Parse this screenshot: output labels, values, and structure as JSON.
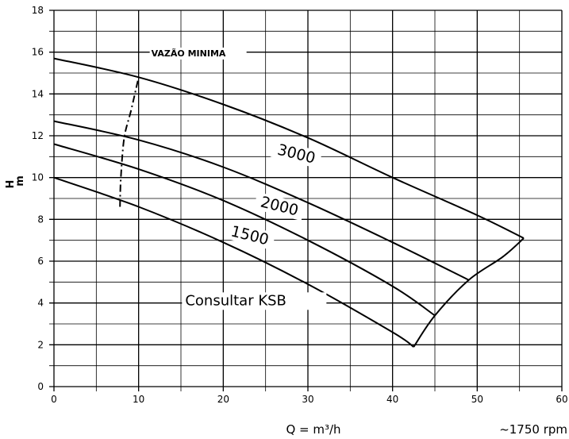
{
  "chart_data": {
    "type": "line",
    "title": "",
    "xlabel": "Q = m³/h",
    "ylabel_top": "H",
    "ylabel_bottom": "m",
    "speed_label": "~1750 rpm",
    "xlim": [
      0,
      60
    ],
    "ylim": [
      0,
      18
    ],
    "xticks": [
      "0",
      "10",
      "20",
      "30",
      "40",
      "50",
      "60"
    ],
    "yticks": [
      "0",
      "2",
      "4",
      "6",
      "8",
      "10",
      "12",
      "14",
      "16",
      "18"
    ],
    "grid": true,
    "series": [
      {
        "name": "3000",
        "x": [
          0,
          10,
          20,
          30,
          40,
          50,
          55.5
        ],
        "y": [
          15.7,
          14.8,
          13.5,
          11.9,
          10.0,
          8.2,
          7.1
        ]
      },
      {
        "name": "2000",
        "x": [
          0,
          10,
          20,
          30,
          40,
          49
        ],
        "y": [
          12.7,
          11.8,
          10.5,
          8.8,
          6.9,
          5.1
        ]
      },
      {
        "name": "1500",
        "x": [
          0,
          10,
          20,
          30,
          40,
          45
        ],
        "y": [
          11.6,
          10.4,
          8.9,
          7.0,
          4.8,
          3.4
        ]
      },
      {
        "name": "",
        "x": [
          0,
          10,
          20,
          30,
          40,
          42.5
        ],
        "y": [
          10.0,
          8.6,
          6.9,
          4.9,
          2.6,
          1.9
        ]
      }
    ],
    "envelope": {
      "x": [
        42.5,
        45,
        49,
        53,
        55.5
      ],
      "y": [
        1.9,
        3.4,
        5.1,
        6.2,
        7.1
      ]
    },
    "min_flow_curve": {
      "x": [
        7.8,
        7.9,
        8.3,
        9.1,
        10.0
      ],
      "y": [
        8.6,
        10.0,
        11.9,
        13.2,
        14.8
      ]
    },
    "curve_labels": [
      {
        "text": "3000",
        "x": 28.5,
        "y": 10.9
      },
      {
        "text": "2000",
        "x": 26.5,
        "y": 8.4
      },
      {
        "text": "1500",
        "x": 23.0,
        "y": 7.0
      }
    ],
    "annotations": [
      {
        "text": "VAZÃO MINIMA",
        "x": 11.5,
        "y": 15.8
      },
      {
        "text": "Consultar KSB",
        "x": 15.5,
        "y": 3.9
      }
    ]
  }
}
